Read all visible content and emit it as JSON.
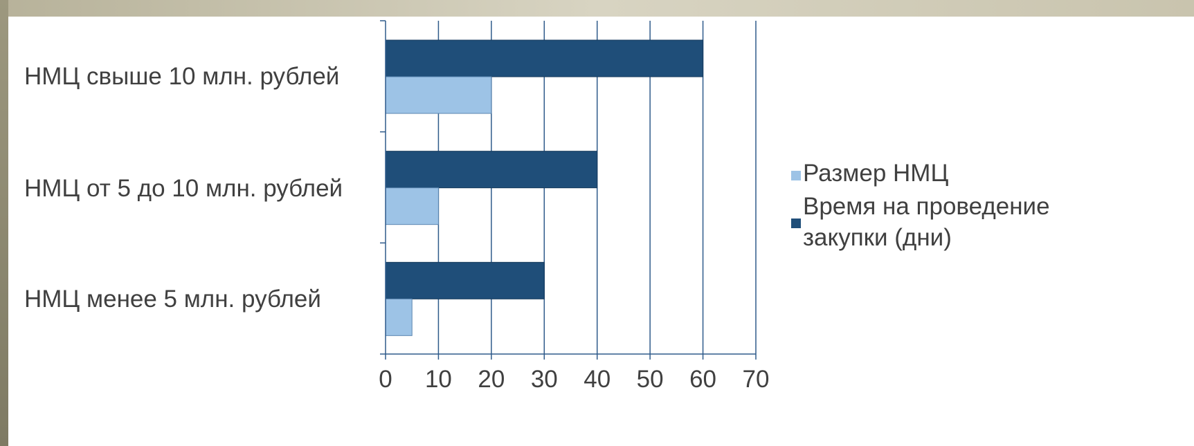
{
  "chart_data": {
    "type": "bar",
    "orientation": "horizontal",
    "categories": [
      "НМЦ свыше 10 млн. рублей",
      "НМЦ от 5 до 10 млн. рублей",
      "НМЦ менее 5 млн. рублей"
    ],
    "series": [
      {
        "name": "Время на проведение закупки (дни)",
        "values": [
          60,
          40,
          30
        ],
        "color": "#1f4e79"
      },
      {
        "name": "Размер НМЦ",
        "values": [
          20,
          10,
          5
        ],
        "color": "#9dc3e6"
      }
    ],
    "legend": {
      "position": "right",
      "entries": [
        {
          "label_lines": [
            "Размер НМЦ"
          ],
          "color": "#9dc3e6"
        },
        {
          "label_lines": [
            "Время на проведение",
            "закупки (дни)"
          ],
          "color": "#1f4e79"
        }
      ]
    },
    "xlim": [
      0,
      70
    ],
    "xticks": [
      "0",
      "10",
      "20",
      "30",
      "40",
      "50",
      "60",
      "70"
    ],
    "grid": true,
    "title": "",
    "xlabel": "",
    "ylabel": ""
  }
}
